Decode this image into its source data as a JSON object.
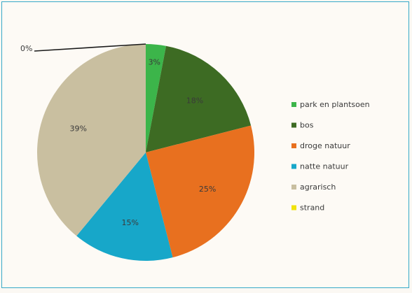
{
  "chart_data": {
    "type": "pie",
    "title": "",
    "legend_position": "right",
    "slices": [
      {
        "name": "park en plantsoen",
        "value": 3,
        "label": "3%",
        "color": "#3cb54a"
      },
      {
        "name": "bos",
        "value": 18,
        "label": "18%",
        "color": "#3d6b23"
      },
      {
        "name": "droge natuur",
        "value": 25,
        "label": "25%",
        "color": "#e8701f"
      },
      {
        "name": "natte natuur",
        "value": 15,
        "label": "15%",
        "color": "#17a7c9"
      },
      {
        "name": "agrarisch",
        "value": 39,
        "label": "39%",
        "color": "#c9bfa0"
      },
      {
        "name": "strand",
        "value": 0,
        "label": "0%",
        "color": "#f1e30c"
      }
    ]
  }
}
